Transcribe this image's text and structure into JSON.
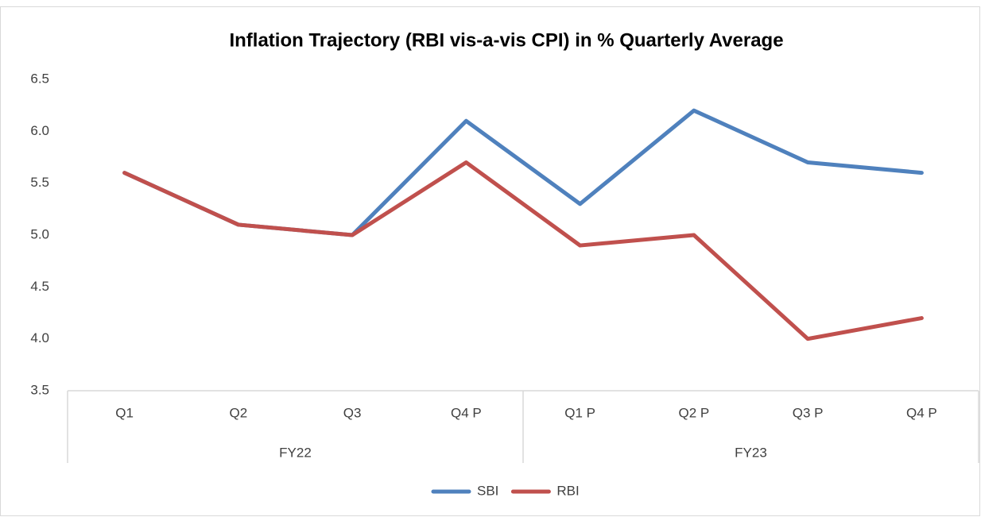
{
  "chart_data": {
    "type": "line",
    "title": "Inflation Trajectory (RBI vis-a-vis CPI) in % Quarterly Average",
    "categories": [
      "Q1",
      "Q2",
      "Q3",
      "Q4 P",
      "Q1 P",
      "Q2 P",
      "Q3 P",
      "Q4 P"
    ],
    "groups": [
      "FY22",
      "FY23"
    ],
    "series": [
      {
        "name": "SBI",
        "color": "#4f81bd",
        "values": [
          5.6,
          5.1,
          5.0,
          6.1,
          5.3,
          6.2,
          5.7,
          5.6
        ]
      },
      {
        "name": "RBI",
        "color": "#c0504d",
        "values": [
          5.6,
          5.1,
          5.0,
          5.7,
          4.9,
          5.0,
          4.0,
          4.2
        ]
      }
    ],
    "ylim": [
      3.5,
      6.5
    ],
    "yticks": [
      {
        "value": 3.5,
        "label": "3.5"
      },
      {
        "value": 4,
        "label": "4.0"
      },
      {
        "value": 4.5,
        "label": "4.5"
      },
      {
        "value": 5,
        "label": "5.0"
      },
      {
        "value": 5.5,
        "label": "5.5"
      },
      {
        "value": 6,
        "label": "6.0"
      },
      {
        "value": 6.5,
        "label": "6.5"
      }
    ],
    "grid": false,
    "legend": "bottom"
  }
}
